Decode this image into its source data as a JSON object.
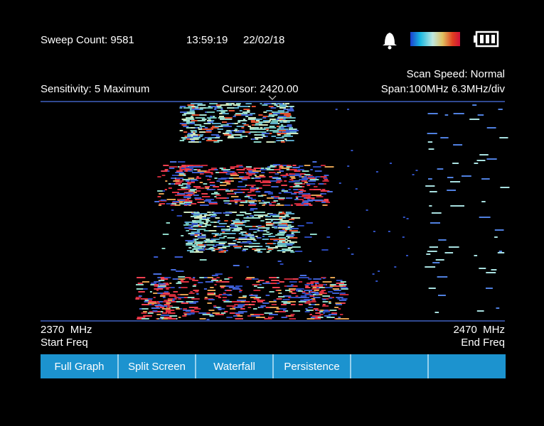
{
  "header": {
    "sweep_count": "Sweep Count: 9581",
    "time": "13:59:19",
    "date": "22/02/18"
  },
  "settings": {
    "scan_speed": "Scan Speed: Normal",
    "sensitivity": "Sensitivity: 5 Maximum",
    "cursor": "Cursor: 2420.00",
    "span": "Span:100MHz 6.3MHz/div"
  },
  "axis": {
    "start_value": "2370  MHz",
    "start_label": "Start Freq",
    "end_value": "2470  MHz",
    "end_label": "End Freq"
  },
  "buttons": [
    "Full Graph",
    "Split Screen",
    "Waterfall",
    "Persistence"
  ]
}
